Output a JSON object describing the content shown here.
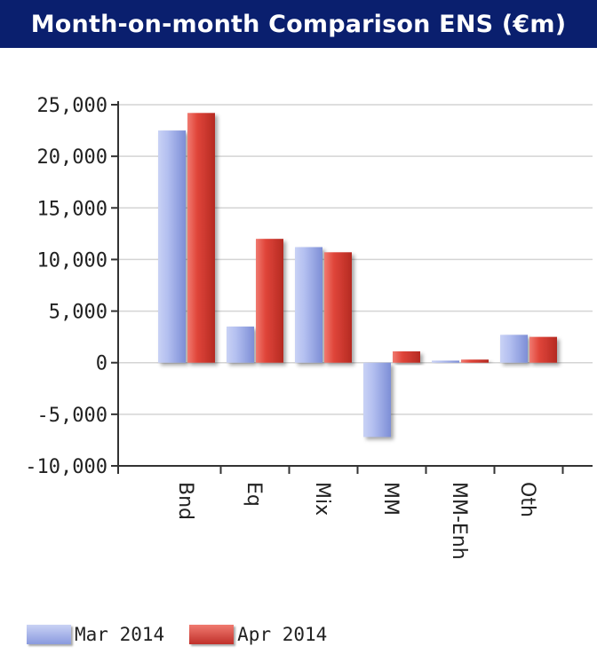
{
  "title": "Month-on-month Comparison ENS (€m)",
  "chart_data": {
    "type": "bar",
    "title": "Month-on-month Comparison ENS (€m)",
    "xlabel": "",
    "ylabel": "",
    "categories": [
      "Bnd",
      "Eq",
      "Mix",
      "MM",
      "MM-Enh",
      "Oth"
    ],
    "series": [
      {
        "name": "Mar 2014",
        "color": "#a7b4e8",
        "values": [
          22500,
          3500,
          11200,
          -7200,
          200,
          2700
        ]
      },
      {
        "name": "Apr 2014",
        "color": "#e0453a",
        "values": [
          24200,
          12000,
          10700,
          1100,
          300,
          2500
        ]
      }
    ],
    "ylim": [
      -10000,
      25000
    ],
    "yticks": [
      25000,
      20000,
      15000,
      10000,
      5000,
      0,
      -5000,
      -10000
    ],
    "ytick_labels": [
      "25,000",
      "20,000",
      "15,000",
      "10,000",
      "5,000",
      "0",
      "-5,000",
      "-10,000"
    ],
    "grid": true,
    "legend": "bottom-left"
  }
}
